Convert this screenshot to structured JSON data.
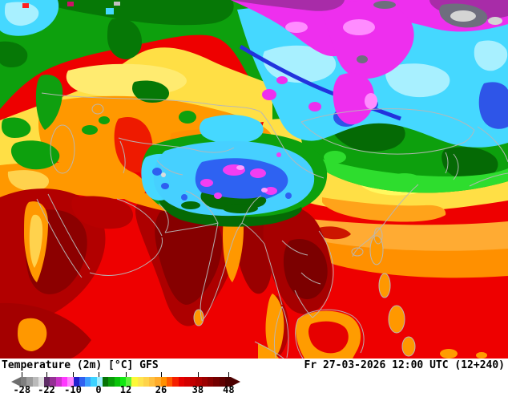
{
  "footer": {
    "product_label": "Temperature (2m) [°C] GFS",
    "datetime_label": "Fr 27-03-2026 12:00 UTC (12+240)"
  },
  "legend": {
    "unit": "°C",
    "arrow_left_color": "#6e6e6e",
    "arrow_right_color": "#4c0000",
    "colors": [
      "#7f7f7f",
      "#9c9c9c",
      "#bababa",
      "#e0e0e0",
      "#5e2d66",
      "#953095",
      "#c933c9",
      "#ff38ff",
      "#ff85ff",
      "#2020cc",
      "#3060f0",
      "#3aa0ff",
      "#3cd2ff",
      "#9ceeff",
      "#067306",
      "#089c08",
      "#0ac40a",
      "#12e812",
      "#5ef23a",
      "#fdf838",
      "#ffe44e",
      "#ffd34a",
      "#ffc040",
      "#ffab2a",
      "#ff9000",
      "#ff5a00",
      "#f52000",
      "#e60000",
      "#d40000",
      "#c20000",
      "#b00000",
      "#9c0000",
      "#880000",
      "#740000",
      "#600000",
      "#4c0000"
    ],
    "ticks": [
      {
        "f": 0.005,
        "label": "-28"
      },
      {
        "f": 0.122,
        "label": "-22"
      },
      {
        "f": 0.248,
        "label": "-10"
      },
      {
        "f": 0.37,
        "label": "0"
      },
      {
        "f": 0.5,
        "label": "12"
      },
      {
        "f": 0.668,
        "label": "26"
      },
      {
        "f": 0.843,
        "label": "38"
      },
      {
        "f": 0.99,
        "label": "48"
      }
    ]
  },
  "map": {
    "sea_base_color": "#ee0000",
    "border_color": "#b8b8b8"
  }
}
